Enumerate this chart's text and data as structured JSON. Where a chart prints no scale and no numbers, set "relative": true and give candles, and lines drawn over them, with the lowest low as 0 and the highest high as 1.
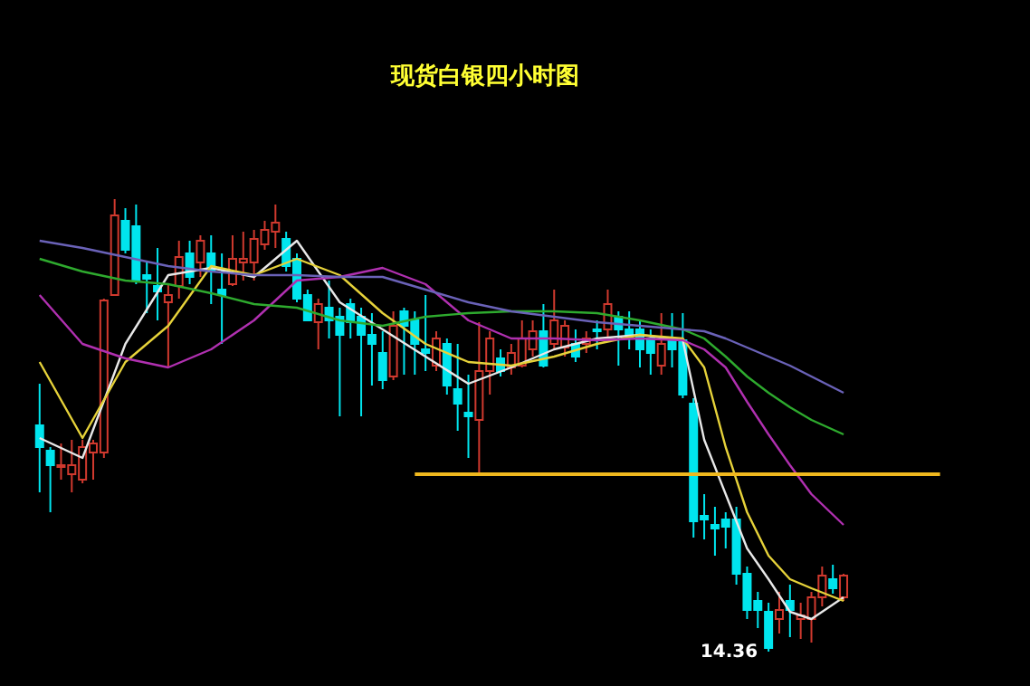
{
  "chart_data": {
    "type": "candlestick",
    "title": "现货白银四小时图",
    "relative": true,
    "categories": [
      null,
      null,
      null,
      null,
      null,
      null,
      null,
      null,
      null,
      null,
      null,
      null,
      null,
      null,
      null,
      null,
      null,
      null,
      null,
      null,
      null,
      null,
      null,
      null,
      null,
      null,
      null,
      null,
      null,
      null,
      null,
      null,
      null,
      null,
      null,
      null,
      null,
      null,
      null,
      null,
      null,
      null,
      null,
      null,
      null,
      null,
      null,
      null,
      null,
      null,
      null,
      null,
      null,
      null,
      null,
      null,
      null,
      null,
      null,
      null,
      null,
      null,
      null,
      null,
      null,
      null,
      null,
      null,
      null,
      null,
      null,
      null,
      null,
      null,
      null,
      null
    ],
    "ohlc": [
      [
        0.5,
        0.592,
        0.352,
        0.452
      ],
      [
        0.444,
        0.452,
        0.308,
        0.412
      ],
      [
        0.408,
        0.46,
        0.38,
        0.412
      ],
      [
        0.392,
        0.468,
        0.352,
        0.412
      ],
      [
        0.38,
        0.468,
        0.372,
        0.452
      ],
      [
        0.44,
        0.468,
        0.38,
        0.46
      ],
      [
        0.44,
        0.78,
        0.428,
        0.776
      ],
      [
        0.788,
        1.0,
        0.788,
        0.964
      ],
      [
        0.952,
        0.98,
        0.88,
        0.888
      ],
      [
        0.94,
        0.988,
        0.812,
        0.82
      ],
      [
        0.832,
        0.86,
        0.748,
        0.824
      ],
      [
        0.808,
        0.892,
        0.732,
        0.796
      ],
      [
        0.772,
        0.812,
        0.628,
        0.788
      ],
      [
        0.808,
        0.908,
        0.78,
        0.872
      ],
      [
        0.88,
        0.908,
        0.812,
        0.828
      ],
      [
        0.86,
        0.92,
        0.828,
        0.908
      ],
      [
        0.88,
        0.92,
        0.768,
        0.84
      ],
      [
        0.8,
        0.88,
        0.68,
        0.788
      ],
      [
        0.812,
        0.92,
        0.808,
        0.868
      ],
      [
        0.86,
        0.928,
        0.82,
        0.868
      ],
      [
        0.86,
        0.932,
        0.82,
        0.912
      ],
      [
        0.9,
        0.952,
        0.888,
        0.932
      ],
      [
        0.928,
        0.988,
        0.892,
        0.948
      ],
      [
        0.912,
        0.928,
        0.84,
        0.852
      ],
      [
        0.868,
        0.88,
        0.772,
        0.78
      ],
      [
        0.788,
        0.8,
        0.732,
        0.732
      ],
      [
        0.728,
        0.78,
        0.668,
        0.768
      ],
      [
        0.76,
        0.82,
        0.692,
        0.732
      ],
      [
        0.74,
        0.76,
        0.52,
        0.7
      ],
      [
        0.768,
        0.78,
        0.692,
        0.728
      ],
      [
        0.74,
        0.76,
        0.52,
        0.7
      ],
      [
        0.7,
        0.748,
        0.588,
        0.68
      ],
      [
        0.66,
        0.708,
        0.58,
        0.6
      ],
      [
        0.608,
        0.752,
        0.6,
        0.72
      ],
      [
        0.752,
        0.76,
        0.612,
        0.72
      ],
      [
        0.732,
        0.752,
        0.612,
        0.68
      ],
      [
        0.668,
        0.788,
        0.62,
        0.66
      ],
      [
        0.632,
        0.708,
        0.62,
        0.692
      ],
      [
        0.68,
        0.692,
        0.568,
        0.588
      ],
      [
        0.58,
        0.68,
        0.488,
        0.548
      ],
      [
        0.528,
        0.612,
        0.428,
        0.52
      ],
      [
        0.512,
        0.728,
        0.388,
        0.62
      ],
      [
        0.62,
        0.708,
        0.568,
        0.692
      ],
      [
        0.648,
        0.668,
        0.608,
        0.62
      ],
      [
        0.628,
        0.68,
        0.612,
        0.66
      ],
      [
        0.632,
        0.732,
        0.628,
        0.692
      ],
      [
        0.668,
        0.732,
        0.652,
        0.708
      ],
      [
        0.708,
        0.768,
        0.628,
        0.632
      ],
      [
        0.68,
        0.8,
        0.668,
        0.732
      ],
      [
        0.672,
        0.732,
        0.652,
        0.72
      ],
      [
        0.68,
        0.712,
        0.64,
        0.652
      ],
      [
        0.68,
        0.708,
        0.66,
        0.692
      ],
      [
        0.712,
        0.732,
        0.668,
        0.708
      ],
      [
        0.712,
        0.8,
        0.692,
        0.768
      ],
      [
        0.74,
        0.752,
        0.632,
        0.712
      ],
      [
        0.712,
        0.752,
        0.668,
        0.7
      ],
      [
        0.712,
        0.732,
        0.628,
        0.668
      ],
      [
        0.692,
        0.712,
        0.612,
        0.66
      ],
      [
        0.632,
        0.748,
        0.612,
        0.68
      ],
      [
        0.688,
        0.748,
        0.628,
        0.668
      ],
      [
        0.688,
        0.748,
        0.56,
        0.568
      ],
      [
        0.548,
        0.56,
        0.252,
        0.288
      ],
      [
        0.3,
        0.348,
        0.248,
        0.292
      ],
      [
        0.28,
        0.32,
        0.212,
        0.272
      ],
      [
        0.292,
        0.308,
        0.228,
        0.276
      ],
      [
        0.292,
        0.32,
        0.148,
        0.172
      ],
      [
        0.172,
        0.188,
        0.072,
        0.092
      ],
      [
        0.112,
        0.132,
        0.052,
        0.092
      ],
      [
        0.088,
        0.108,
        0.0,
        0.008
      ],
      [
        0.072,
        0.132,
        0.04,
        0.092
      ],
      [
        0.112,
        0.148,
        0.032,
        0.092
      ],
      [
        0.072,
        0.108,
        0.028,
        0.08
      ],
      [
        0.072,
        0.132,
        0.02,
        0.12
      ],
      [
        0.12,
        0.188,
        0.1,
        0.168
      ],
      [
        0.16,
        0.192,
        0.128,
        0.14
      ],
      [
        0.12,
        0.172,
        0.112,
        0.168
      ]
    ],
    "colors": [
      "#00e5ee",
      "#00e5ee",
      "#d0392e",
      "#d0392e",
      "#d0392e",
      "#d0392e",
      "#d0392e",
      "#d0392e",
      "#00e5ee",
      "#00e5ee",
      "#00e5ee",
      "#00e5ee",
      "#d0392e",
      "#d0392e",
      "#00e5ee",
      "#d0392e",
      "#00e5ee",
      "#00e5ee",
      "#d0392e",
      "#d0392e",
      "#d0392e",
      "#d0392e",
      "#d0392e",
      "#00e5ee",
      "#00e5ee",
      "#00e5ee",
      "#d0392e",
      "#00e5ee",
      "#00e5ee",
      "#00e5ee",
      "#00e5ee",
      "#00e5ee",
      "#00e5ee",
      "#d0392e",
      "#00e5ee",
      "#00e5ee",
      "#00e5ee",
      "#d0392e",
      "#00e5ee",
      "#00e5ee",
      "#00e5ee",
      "#d0392e",
      "#d0392e",
      "#00e5ee",
      "#d0392e",
      "#d0392e",
      "#d0392e",
      "#00e5ee",
      "#d0392e",
      "#d0392e",
      "#00e5ee",
      "#d0392e",
      "#00e5ee",
      "#d0392e",
      "#00e5ee",
      "#00e5ee",
      "#00e5ee",
      "#00e5ee",
      "#d0392e",
      "#00e5ee",
      "#00e5ee",
      "#00e5ee",
      "#00e5ee",
      "#00e5ee",
      "#00e5ee",
      "#00e5ee",
      "#00e5ee",
      "#00e5ee",
      "#00e5ee",
      "#d0392e",
      "#00e5ee",
      "#d0392e",
      "#d0392e",
      "#d0392e",
      "#00e5ee",
      "#d0392e"
    ],
    "series": [
      {
        "type": "line",
        "color": "#e8e8e8",
        "values": [
          0.472,
          null,
          null,
          null,
          0.428,
          null,
          null,
          null,
          0.68,
          null,
          null,
          null,
          0.832,
          null,
          null,
          null,
          0.848,
          null,
          null,
          null,
          0.828,
          null,
          null,
          null,
          0.908,
          null,
          null,
          null,
          0.772,
          null,
          null,
          null,
          0.712,
          null,
          null,
          null,
          0.652,
          null,
          null,
          null,
          0.592,
          null,
          null,
          null,
          0.628,
          null,
          null,
          null,
          0.668,
          null,
          null,
          null,
          0.692,
          null,
          null,
          null,
          0.7,
          null,
          null,
          null,
          0.688,
          null,
          0.468,
          null,
          0.348,
          null,
          0.228,
          null,
          0.16,
          null,
          0.088,
          null,
          0.072,
          null,
          null,
          0.12
        ]
      },
      {
        "type": "line",
        "color": "#e6d23a",
        "values": [
          0.64,
          null,
          null,
          null,
          0.472,
          null,
          null,
          null,
          0.64,
          null,
          null,
          null,
          0.72,
          null,
          null,
          null,
          0.852,
          null,
          null,
          null,
          0.832,
          null,
          null,
          null,
          0.868,
          null,
          null,
          null,
          0.832,
          null,
          null,
          null,
          0.748,
          null,
          null,
          null,
          0.68,
          null,
          null,
          null,
          0.64,
          null,
          null,
          null,
          0.632,
          null,
          null,
          null,
          0.652,
          null,
          null,
          null,
          0.68,
          null,
          null,
          null,
          0.7,
          null,
          null,
          null,
          0.692,
          null,
          0.628,
          null,
          0.452,
          null,
          0.308,
          null,
          0.212,
          null,
          0.16,
          null,
          0.14,
          null,
          null,
          0.112
        ]
      },
      {
        "type": "line",
        "color": "#b030b0",
        "values": [
          0.788,
          null,
          null,
          null,
          0.68,
          null,
          null,
          null,
          0.648,
          null,
          null,
          null,
          0.628,
          null,
          null,
          null,
          0.668,
          null,
          null,
          null,
          0.732,
          null,
          null,
          null,
          0.82,
          null,
          null,
          null,
          0.828,
          null,
          null,
          null,
          0.848,
          null,
          null,
          null,
          0.812,
          null,
          null,
          null,
          0.732,
          null,
          null,
          null,
          0.692,
          null,
          null,
          null,
          0.692,
          null,
          null,
          null,
          0.688,
          null,
          null,
          null,
          0.692,
          null,
          null,
          null,
          0.688,
          null,
          0.668,
          null,
          0.628,
          null,
          0.552,
          null,
          0.48,
          null,
          0.412,
          null,
          0.348,
          null,
          null,
          0.28
        ]
      },
      {
        "type": "line",
        "color": "#2eaa2e",
        "values": [
          0.868,
          null,
          null,
          null,
          0.84,
          null,
          null,
          null,
          0.82,
          null,
          null,
          null,
          0.812,
          null,
          null,
          null,
          0.792,
          null,
          null,
          null,
          0.768,
          null,
          null,
          null,
          0.76,
          null,
          null,
          null,
          0.732,
          null,
          null,
          null,
          0.72,
          null,
          null,
          null,
          0.74,
          null,
          null,
          null,
          0.748,
          null,
          null,
          null,
          0.752,
          null,
          null,
          null,
          0.752,
          null,
          null,
          null,
          0.748,
          null,
          null,
          null,
          0.732,
          null,
          null,
          null,
          0.712,
          null,
          0.692,
          null,
          0.652,
          null,
          0.608,
          null,
          0.572,
          null,
          0.54,
          null,
          0.512,
          null,
          null,
          0.48
        ]
      },
      {
        "type": "line",
        "color": "#6a62b8",
        "values": [
          0.908,
          null,
          null,
          null,
          0.892,
          null,
          null,
          null,
          0.872,
          null,
          null,
          null,
          0.852,
          null,
          null,
          null,
          0.84,
          null,
          null,
          null,
          0.832,
          null,
          null,
          null,
          0.832,
          null,
          null,
          null,
          0.828,
          null,
          null,
          null,
          0.828,
          null,
          null,
          null,
          0.8,
          null,
          null,
          null,
          0.772,
          null,
          null,
          null,
          0.752,
          null,
          null,
          null,
          0.74,
          null,
          null,
          null,
          0.728,
          null,
          null,
          null,
          0.72,
          null,
          null,
          null,
          0.712,
          null,
          0.708,
          null,
          0.692,
          null,
          0.672,
          null,
          0.652,
          null,
          0.632,
          null,
          0.608,
          null,
          null,
          0.572
        ]
      }
    ],
    "ref_lines": [
      {
        "axis": "y",
        "value": 0.392,
        "color": "#f0b81e"
      }
    ],
    "annotations": [
      "14.36"
    ]
  }
}
